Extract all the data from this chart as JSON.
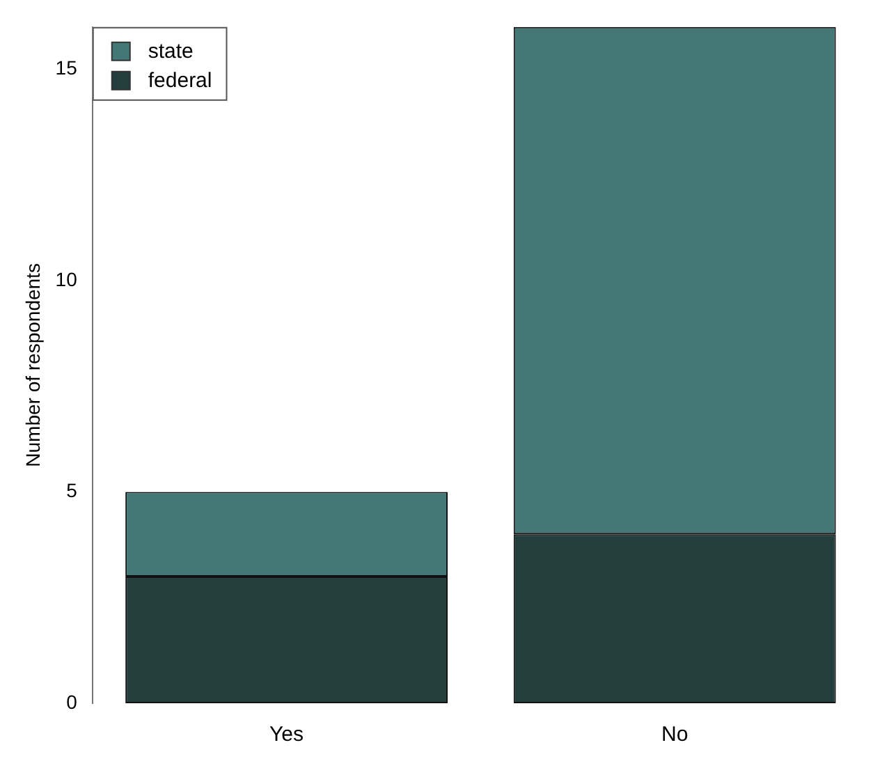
{
  "chart_data": {
    "type": "bar",
    "ylabel": "Number of respondents",
    "categories": [
      "Yes",
      "No"
    ],
    "stacked": true,
    "series": [
      {
        "name": "federal",
        "color": "#243d3d",
        "values": [
          3,
          4
        ]
      },
      {
        "name": "state",
        "color": "#437876",
        "values": [
          2,
          12
        ]
      }
    ],
    "ylim": [
      0,
      16
    ],
    "yticks": [
      0,
      5,
      10,
      15
    ],
    "grid": false,
    "legend": "top left"
  }
}
